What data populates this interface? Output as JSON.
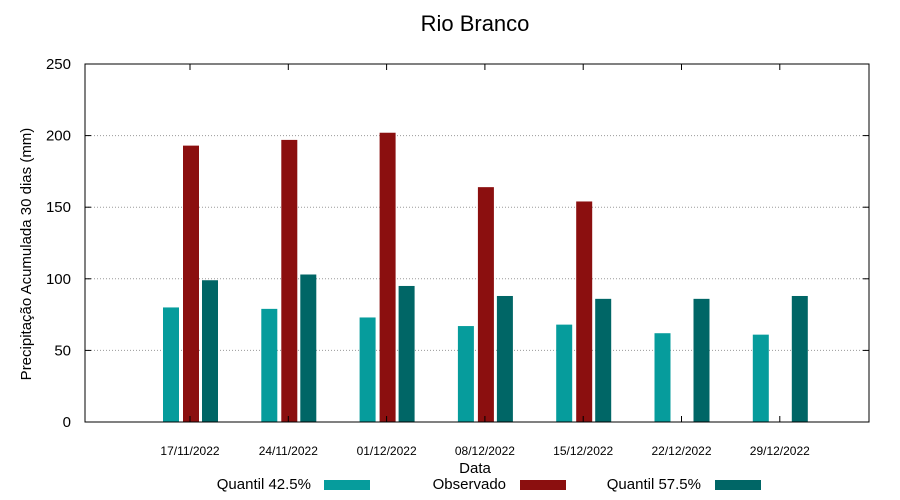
{
  "chart_data": {
    "type": "bar",
    "title": "Rio Branco",
    "xlabel": "Data",
    "ylabel": "Precipitação Acumulada 30 dias (mm)",
    "ylim": [
      0,
      250
    ],
    "yticks": [
      0,
      50,
      100,
      150,
      200,
      250
    ],
    "grid": "horizontal dotted",
    "legend_position": "bottom",
    "categories": [
      "17/11/2022",
      "24/11/2022",
      "01/12/2022",
      "08/12/2022",
      "15/12/2022",
      "22/12/2022",
      "29/12/2022"
    ],
    "series": [
      {
        "name": "Quantil 42.5%",
        "color": "#069c9c",
        "values": [
          80,
          79,
          73,
          67,
          68,
          62,
          61
        ]
      },
      {
        "name": "Observado",
        "color": "#8b0f0f",
        "values": [
          193,
          197,
          202,
          164,
          154,
          null,
          null
        ]
      },
      {
        "name": "Quantil 57.5%",
        "color": "#006666",
        "values": [
          99,
          103,
          95,
          88,
          86,
          86,
          88
        ]
      }
    ]
  }
}
